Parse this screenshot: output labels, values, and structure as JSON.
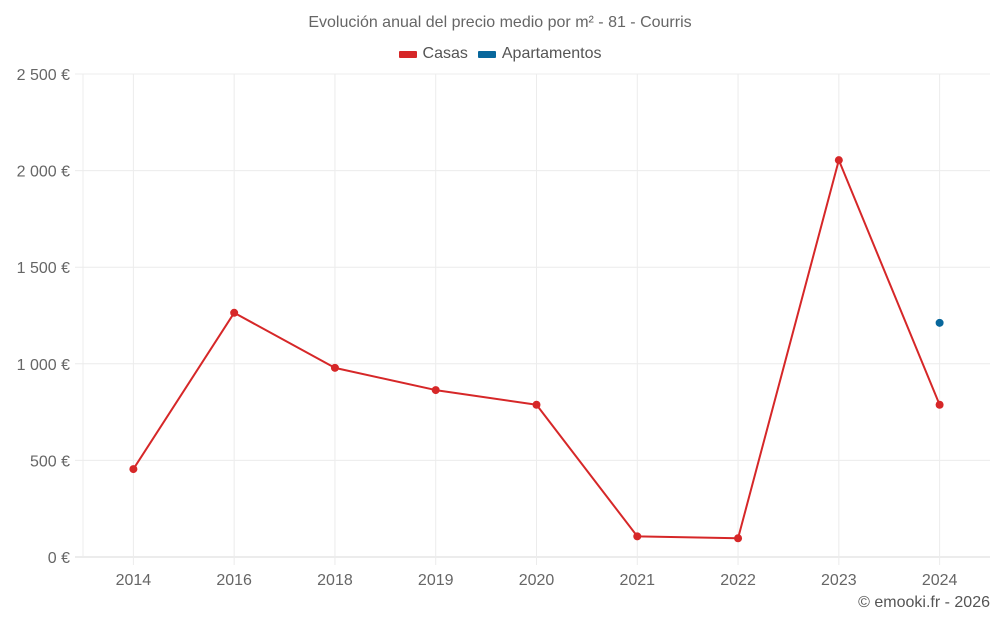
{
  "title": "Evolución anual del precio medio por m² - 81 - Courris",
  "legend": [
    {
      "label": "Casas",
      "color": "#d62728"
    },
    {
      "label": "Apartamentos",
      "color": "#08679c"
    }
  ],
  "credit": "© emooki.fr - 2026",
  "chart_data": {
    "type": "line",
    "title": "Evolución anual del precio medio por m² - 81 - Courris",
    "xlabel": "",
    "ylabel": "",
    "categories": [
      "2014",
      "2016",
      "2018",
      "2019",
      "2020",
      "2021",
      "2022",
      "2023",
      "2024"
    ],
    "series": [
      {
        "name": "Casas",
        "color": "#d62728",
        "values": [
          455,
          1264,
          979,
          864,
          788,
          107,
          97,
          2054,
          788
        ]
      },
      {
        "name": "Apartamentos",
        "color": "#08679c",
        "values": [
          null,
          null,
          null,
          null,
          null,
          null,
          null,
          null,
          1212
        ]
      }
    ],
    "ylim": [
      0,
      2500
    ],
    "yticks": [
      0,
      500,
      1000,
      1500,
      2000,
      2500
    ],
    "ytick_labels": [
      "0 €",
      "500 €",
      "1 000 €",
      "1 500 €",
      "2 000 €",
      "2 500 €"
    ],
    "grid": true,
    "legend_position": "top"
  }
}
